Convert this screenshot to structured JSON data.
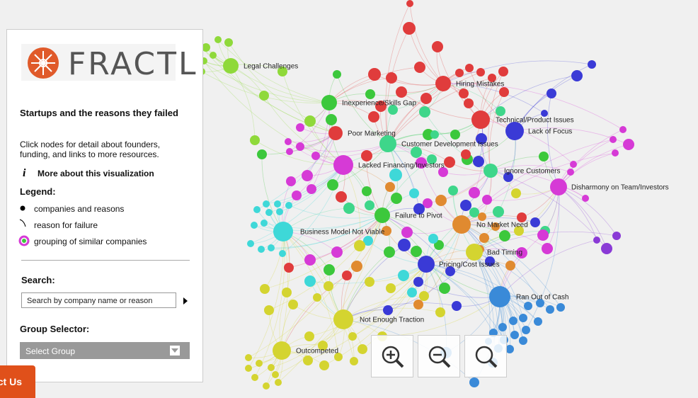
{
  "sidebar": {
    "logo": "FRACTL",
    "title": "Startups and the reasons they failed",
    "intro": "Click nodes for detail about founders, funding, and links to more resources.",
    "more_link": "More about this visualization",
    "legend": {
      "title": "Legend:",
      "items": [
        "companies and reasons",
        "reason for failure",
        "grouping of similar companies"
      ]
    },
    "search": {
      "title": "Search:",
      "placeholder": "Search by company name or reason"
    },
    "group_selector": {
      "title": "Group Selector:",
      "selected": "Select Group"
    }
  },
  "contact_button": "ct Us",
  "nodes": [
    {
      "label": "Legal Challenges",
      "color": "#8fd93a"
    },
    {
      "label": "Hiring Mistakes",
      "color": "#e03c3c"
    },
    {
      "label": "Inexperience/Skills Gap",
      "color": "#3cc83c"
    },
    {
      "label": "Technical/Product Issues",
      "color": "#e03c3c"
    },
    {
      "label": "Lack of Focus",
      "color": "#3a3ad6"
    },
    {
      "label": "Poor Marketing",
      "color": "#e03c3c"
    },
    {
      "label": "Customer Development Issues",
      "color": "#3ed68a"
    },
    {
      "label": "Lacked Financing/Investors",
      "color": "#d63ad6"
    },
    {
      "label": "Ignore Customers",
      "color": "#3ed68a"
    },
    {
      "label": "Disharmony on Team/Investors",
      "color": "#d63ad6"
    },
    {
      "label": "Failure to Pivot",
      "color": "#3cc83c"
    },
    {
      "label": "No Market Need",
      "color": "#e08a30"
    },
    {
      "label": "Business Model Not Viable",
      "color": "#3ed8d8"
    },
    {
      "label": "Bad Timing",
      "color": "#d4d430"
    },
    {
      "label": "Pricing/Cost Issues",
      "color": "#3a3ad6"
    },
    {
      "label": "Ran Out of Cash",
      "color": "#3a8ad8"
    },
    {
      "label": "Not Enough Traction",
      "color": "#d4d430"
    },
    {
      "label": "Outcompeted",
      "color": "#d4d430"
    }
  ]
}
